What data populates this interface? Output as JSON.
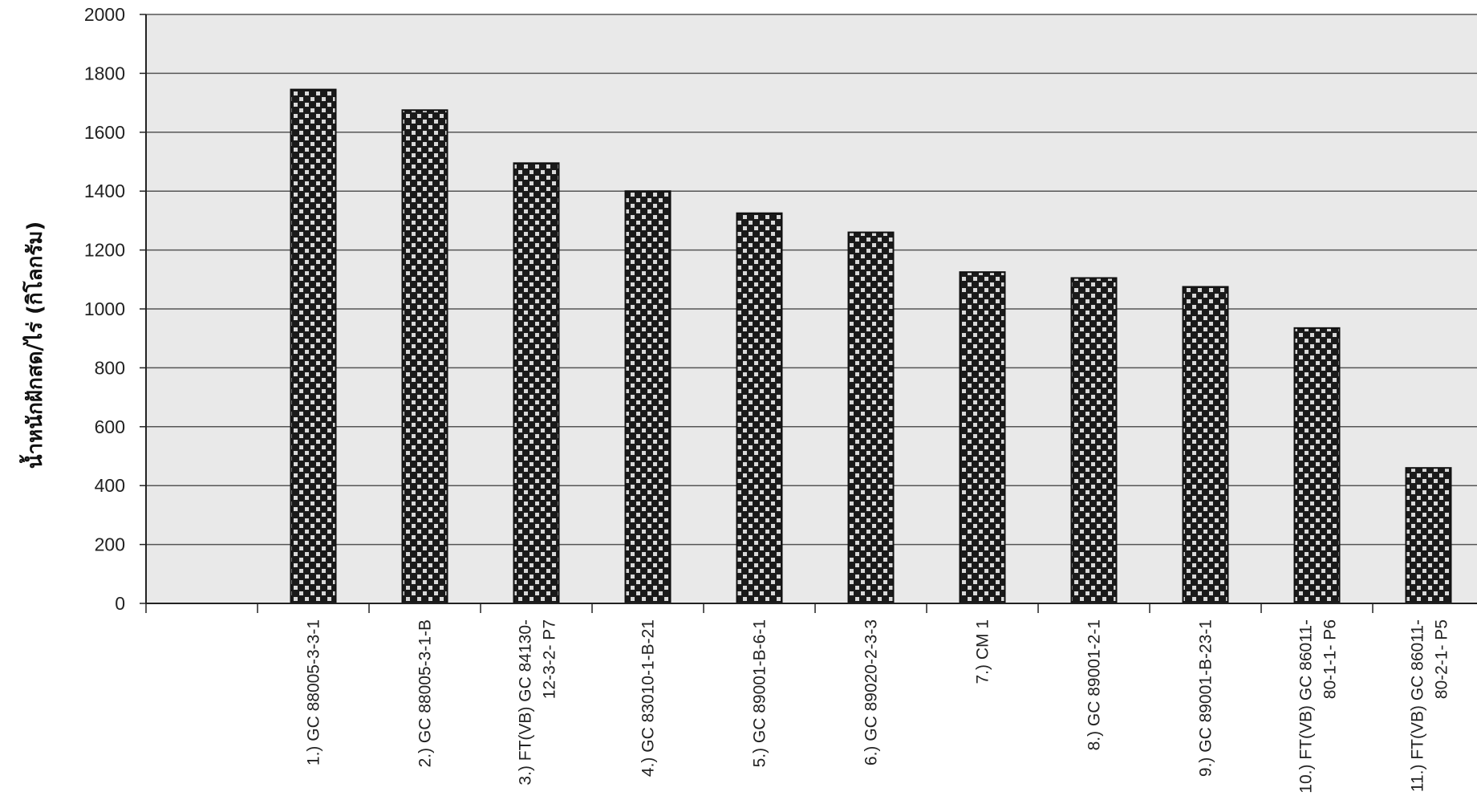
{
  "chart_data": {
    "type": "bar",
    "title": "",
    "xlabel": "",
    "ylabel": "น้ำหนักฝักสด/ไร่ (กิโลกรัม)",
    "ylim": [
      0,
      2000
    ],
    "yticks": [
      0,
      200,
      400,
      600,
      800,
      1000,
      1200,
      1400,
      1600,
      1800,
      2000
    ],
    "grid": true,
    "categories": [
      [
        "1.)  GC 88005-3-3-1"
      ],
      [
        "2.)  GC 88005-3-1-B"
      ],
      [
        "3.)  FT(VB) GC 84130-",
        "12-3-2- P7"
      ],
      [
        "4.)  GC 83010-1-B-21"
      ],
      [
        "5.)  GC 89001-B-6-1"
      ],
      [
        "6.)  GC 89020-2-3-3"
      ],
      [
        "7.)   CM  1"
      ],
      [
        "8.)  GC 89001-2-1"
      ],
      [
        "9.)  GC 89001-B-23-1"
      ],
      [
        "10.)  FT(VB) GC 86011-",
        "80-1-1- P6"
      ],
      [
        "11.)  FT(VB) GC 86011-",
        "80-2-1- P5"
      ]
    ],
    "values": [
      1745,
      1675,
      1495,
      1400,
      1325,
      1260,
      1125,
      1105,
      1075,
      935,
      460
    ],
    "colors": {
      "bar_dark": "#1a1a1a",
      "bar_light": "#d9d9d9",
      "plot_bg": "#e9e9e9",
      "grid": "#555555"
    }
  }
}
